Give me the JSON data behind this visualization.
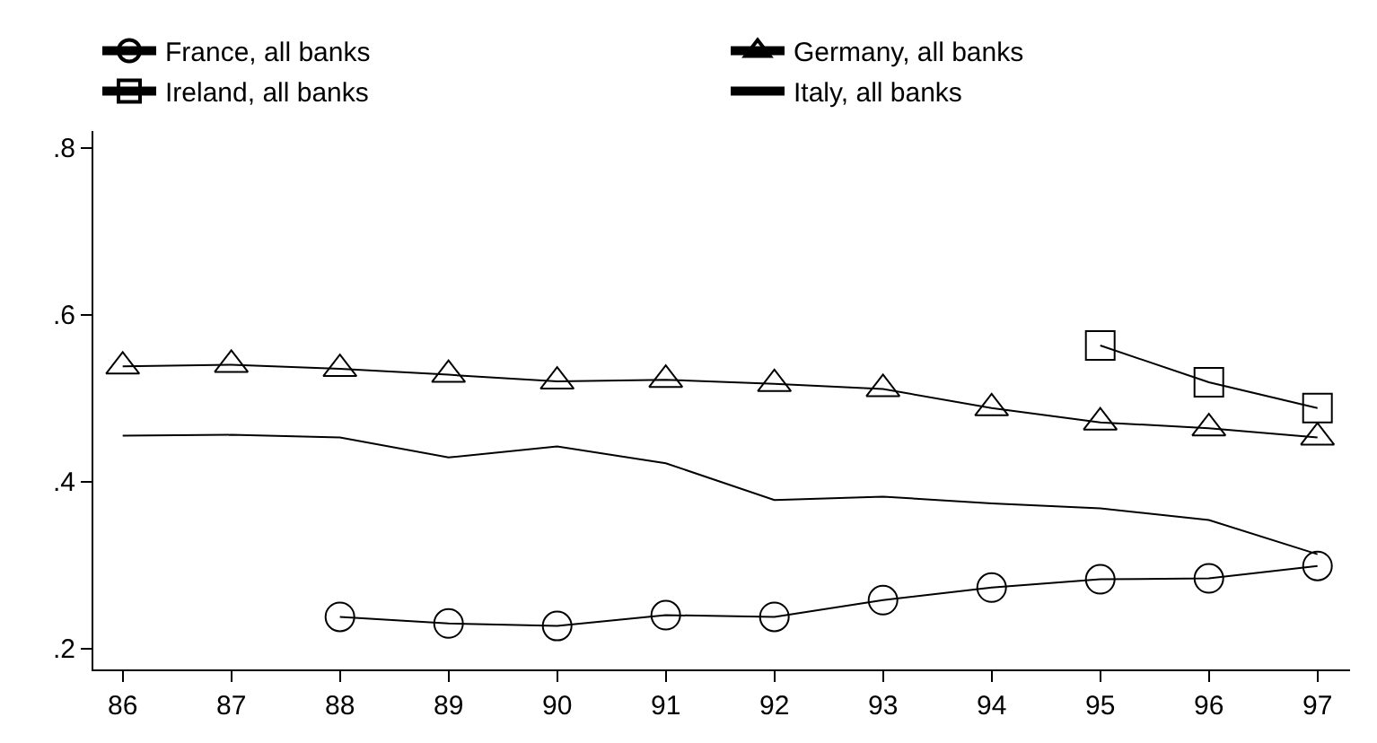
{
  "chart_data": {
    "type": "line",
    "x": [
      86,
      87,
      88,
      89,
      90,
      91,
      92,
      93,
      94,
      95,
      96,
      97
    ],
    "series": [
      {
        "name": "France, all banks",
        "color": "#000000",
        "marker": "circle",
        "values": [
          null,
          null,
          0.238,
          0.23,
          0.227,
          0.24,
          0.238,
          0.258,
          0.273,
          0.283,
          0.284,
          0.299
        ]
      },
      {
        "name": "Germany, all banks",
        "color": "#000000",
        "marker": "triangle",
        "values": [
          0.538,
          0.54,
          0.535,
          0.528,
          0.52,
          0.522,
          0.517,
          0.511,
          0.488,
          0.471,
          0.464,
          0.453
        ]
      },
      {
        "name": "Ireland, all banks",
        "color": "#000000",
        "marker": "square",
        "values": [
          null,
          null,
          null,
          null,
          null,
          null,
          null,
          null,
          null,
          0.563,
          0.519,
          0.488
        ]
      },
      {
        "name": "Italy, all banks",
        "color": "#000000",
        "marker": "none",
        "values": [
          0.455,
          0.456,
          0.453,
          0.429,
          0.442,
          0.422,
          0.378,
          0.382,
          0.374,
          0.368,
          0.354,
          0.313
        ]
      }
    ],
    "xlim": [
      85.73,
      97.3
    ],
    "xticks": [
      86,
      87,
      88,
      89,
      90,
      91,
      92,
      93,
      94,
      95,
      96,
      97
    ],
    "ylim": [
      0.175,
      0.82
    ],
    "yticks": [
      {
        "value": 0.2,
        "label": ".2"
      },
      {
        "value": 0.4,
        "label": ".4"
      },
      {
        "value": 0.6,
        "label": ".6"
      },
      {
        "value": 0.8,
        "label": ".8"
      }
    ],
    "legend": "top",
    "line_style": "solid"
  }
}
